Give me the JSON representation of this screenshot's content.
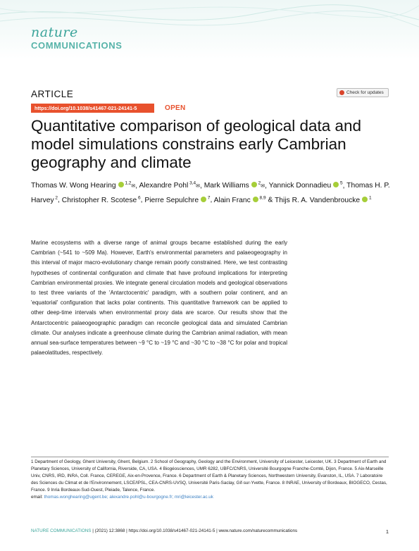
{
  "journal": {
    "logo_top": "nature",
    "logo_bottom": "COMMUNICATIONS"
  },
  "article_type": "ARTICLE",
  "check_updates": "Check for updates",
  "doi": "https://doi.org/10.1038/s41467-021-24141-5",
  "access": "OPEN",
  "title": "Quantitative comparison of geological data and model simulations constrains early Cambrian geography and climate",
  "authors": [
    {
      "name": "Thomas W. Wong Hearing",
      "sup": "1,2",
      "orcid": true,
      "mail": true,
      "sep": ", "
    },
    {
      "name": "Alexandre Pohl",
      "sup": "3,4",
      "orcid": false,
      "mail": true,
      "sep": ", "
    },
    {
      "name": "Mark Williams",
      "sup": "2",
      "orcid": true,
      "mail": true,
      "sep": ", "
    },
    {
      "name": "Yannick Donnadieu",
      "sup": "5",
      "orcid": true,
      "mail": false,
      "sep": ", "
    },
    {
      "name": "Thomas H. P. Harvey",
      "sup": "2",
      "orcid": false,
      "mail": false,
      "sep": ", "
    },
    {
      "name": "Christopher R. Scotese",
      "sup": "6",
      "orcid": false,
      "mail": false,
      "sep": ", "
    },
    {
      "name": "Pierre Sepulchre",
      "sup": "7",
      "orcid": true,
      "mail": false,
      "sep": ", "
    },
    {
      "name": "Alain Franc",
      "sup": "8,9",
      "orcid": true,
      "mail": false,
      "sep": " & "
    },
    {
      "name": "Thijs R. A. Vandenbroucke",
      "sup": "1",
      "orcid": true,
      "mail": false,
      "sep": ""
    }
  ],
  "abstract": "Marine ecosystems with a diverse range of animal groups became established during the early Cambrian (~541 to ~509 Ma). However, Earth's environmental parameters and palaeogeography in this interval of major macro-evolutionary change remain poorly constrained. Here, we test contrasting hypotheses of continental configuration and climate that have profound implications for interpreting Cambrian environmental proxies. We integrate general circulation models and geological observations to test three variants of the 'Antarctocentric' paradigm, with a southern polar continent, and an 'equatorial' configuration that lacks polar continents. This quantitative framework can be applied to other deep-time intervals when environmental proxy data are scarce. Our results show that the Antarctocentric palaeogeographic paradigm can reconcile geological data and simulated Cambrian climate. Our analyses indicate a greenhouse climate during the Cambrian animal radiation, with mean annual sea-surface temperatures between ~9 °C to ~19 °C and ~30 °C to ~38 °C for polar and tropical palaeolatitudes, respectively.",
  "affiliations": "1 Department of Geology, Ghent University, Ghent, Belgium. 2 School of Geography, Geology and the Environment, University of Leicester, Leicester, UK. 3 Department of Earth and Planetary Sciences, University of California, Riverside, CA, USA. 4 Biogéosciences, UMR 6282, UBFC/CNRS, Université Bourgogne Franche-Comté, Dijon, France. 5 Aix-Marseille Univ, CNRS, IRD, INRA, Coll. France, CEREGE, Aix-en-Provence, France. 6 Department of Earth & Planetary Sciences, Northwestern University, Evanston, IL, USA. 7 Laboratoire des Sciences du Climat et de l'Environnement, LSCE/IPSL, CEA-CNRS-UVSQ, Université Paris-Saclay, Gif-sur-Yvette, France. 8 INRAE, University of Bordeaux, BIOGECO, Cestas, France. 9 Inria Bordeaux-Sud-Ouest, Pleiade, Talence, France.",
  "email_label": "email: ",
  "emails": "thomas.wonghearing@ugent.be; alexandre.pohl@u-bourgogne.fr; mri@leicester.ac.uk",
  "footer": {
    "journal": "NATURE COMMUNICATIONS",
    "citation": "| (2021) 12:3868 | https://doi.org/10.1038/s41467-021-24141-5 | www.nature.com/naturecommunications",
    "page": "1"
  },
  "colors": {
    "accent": "#e8512d",
    "brand": "#3aa49a",
    "orcid": "#a6ce39"
  }
}
